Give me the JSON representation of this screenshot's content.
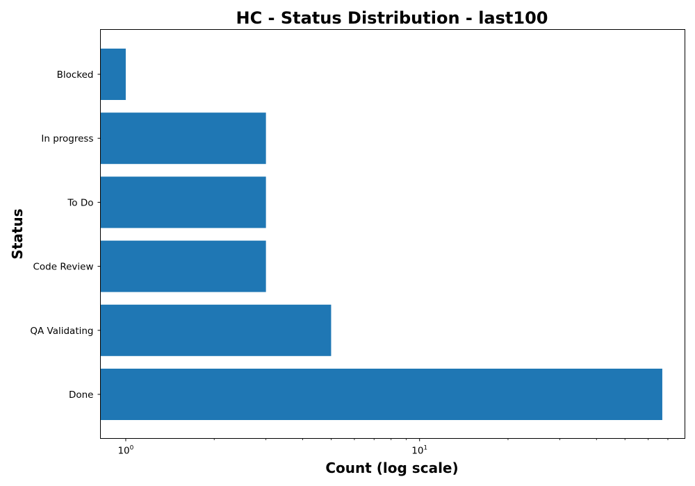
{
  "chart_data": {
    "type": "bar",
    "orientation": "horizontal",
    "title": "HC - Status Distribution - last100",
    "xlabel": "Count (log scale)",
    "ylabel": "Status",
    "x_scale": "log",
    "xlim": [
      0.82,
      80
    ],
    "categories": [
      "Done",
      "QA Validating",
      "Code Review",
      "To Do",
      "In progress",
      "Blocked"
    ],
    "values": [
      67,
      5,
      3,
      3,
      3,
      1
    ],
    "x_major_ticks": [
      {
        "value": 1,
        "base": "10",
        "exponent": "0"
      },
      {
        "value": 10,
        "base": "10",
        "exponent": "1"
      }
    ],
    "bar_color": "#1f77b4",
    "grid": false,
    "legend": "none"
  }
}
